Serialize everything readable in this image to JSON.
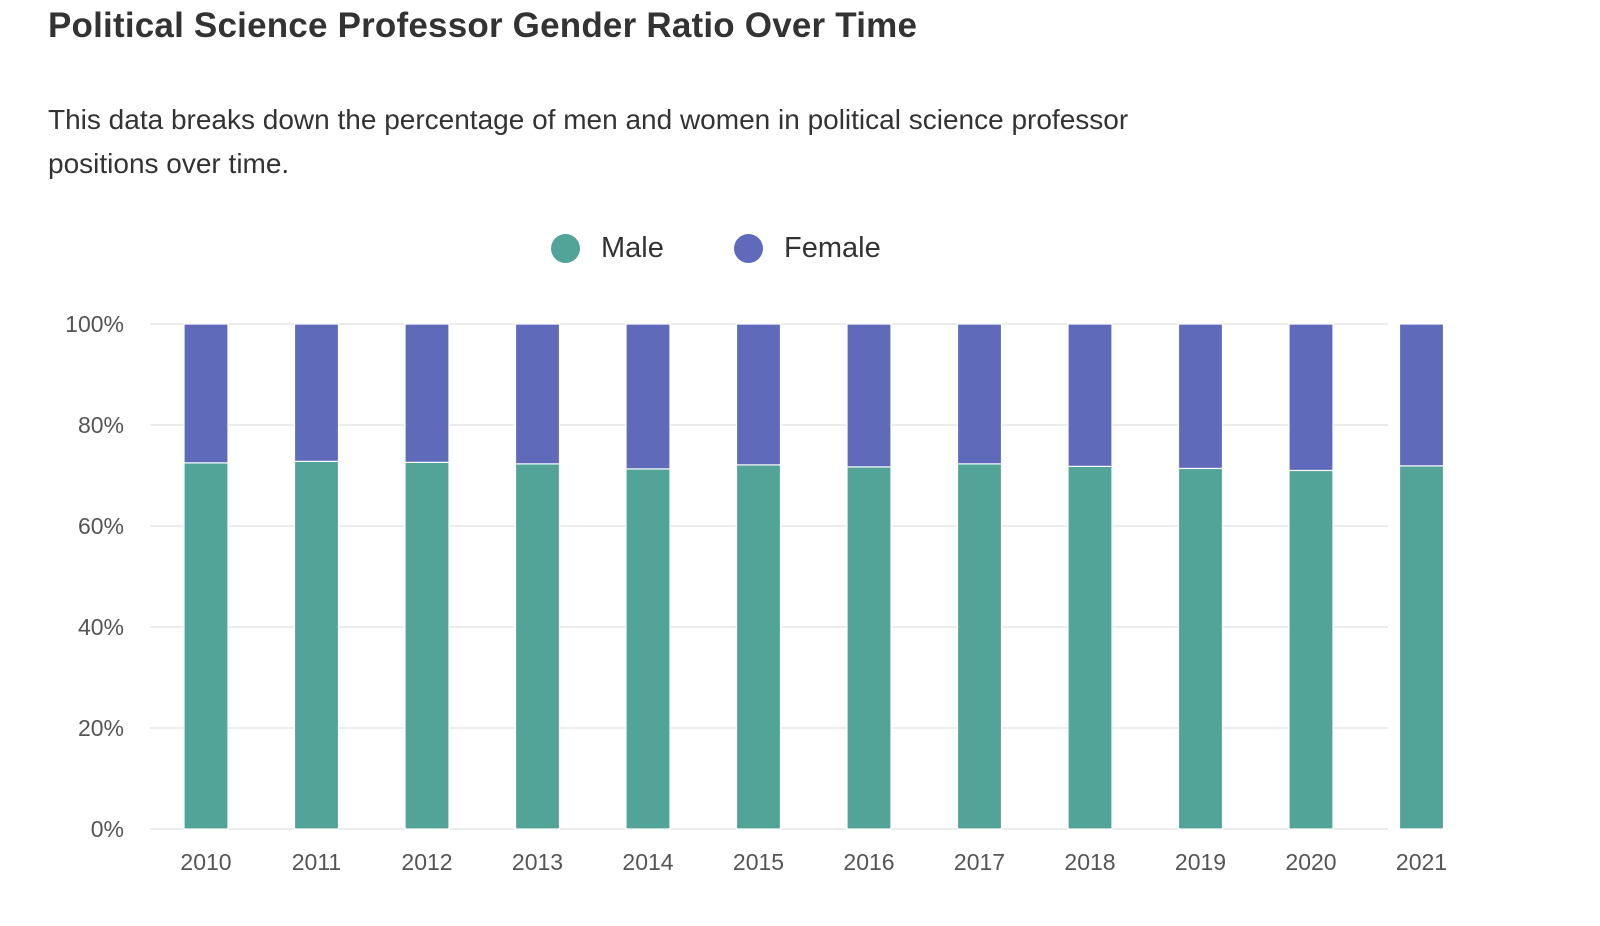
{
  "chart_data": {
    "type": "bar",
    "stacked": true,
    "title": "Political Science Professor Gender Ratio Over Time",
    "subtitle": "This data breaks down the percentage of men and women in political science professor positions over time.",
    "xlabel": "",
    "ylabel": "",
    "ylim": [
      0,
      100
    ],
    "yticks": [
      "0%",
      "20%",
      "40%",
      "60%",
      "80%",
      "100%"
    ],
    "categories": [
      "2010",
      "2011",
      "2012",
      "2013",
      "2014",
      "2015",
      "2016",
      "2017",
      "2018",
      "2019",
      "2020",
      "2021"
    ],
    "series": [
      {
        "name": "Male",
        "color": "#52a398",
        "values": [
          72.5,
          72.8,
          72.6,
          72.3,
          71.3,
          72.1,
          71.7,
          72.3,
          71.8,
          71.4,
          71.0,
          71.9
        ]
      },
      {
        "name": "Female",
        "color": "#5f6abb",
        "values": [
          27.5,
          27.2,
          27.4,
          27.7,
          28.7,
          27.9,
          28.3,
          27.7,
          28.2,
          28.6,
          29.0,
          28.1
        ]
      }
    ],
    "legend_position": "top-center",
    "grid": true
  }
}
